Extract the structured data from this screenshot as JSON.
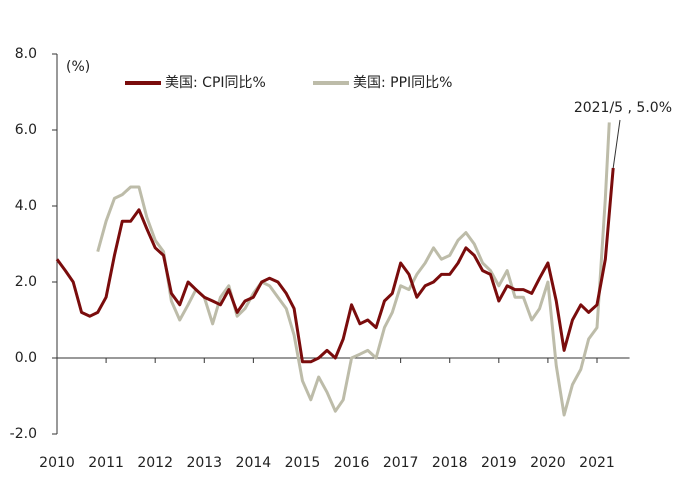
{
  "chart_data": {
    "type": "line",
    "y_label": "(%)",
    "annotation": "2021/5 , 5.0%",
    "legend": "top",
    "xlim": [
      2010,
      2021.5
    ],
    "xticks": [
      2010,
      2011,
      2012,
      2013,
      2014,
      2015,
      2016,
      2017,
      2018,
      2019,
      2020,
      2021
    ],
    "ylim": [
      -2,
      8
    ],
    "yticks": [
      {
        "value": -2,
        "label": "-2.0"
      },
      {
        "value": 0,
        "label": "0.0"
      },
      {
        "value": 2,
        "label": "2.0"
      },
      {
        "value": 4,
        "label": "4.0"
      },
      {
        "value": 6,
        "label": "6.0"
      },
      {
        "value": 8,
        "label": "8.0"
      }
    ],
    "series": [
      {
        "name": "美国: CPI同比%",
        "color": "#7a0c0c",
        "x": [
          2010.0,
          2010.17,
          2010.33,
          2010.5,
          2010.67,
          2010.83,
          2011.0,
          2011.17,
          2011.33,
          2011.5,
          2011.67,
          2011.83,
          2012.0,
          2012.17,
          2012.33,
          2012.5,
          2012.67,
          2012.83,
          2013.0,
          2013.17,
          2013.33,
          2013.5,
          2013.67,
          2013.83,
          2014.0,
          2014.17,
          2014.33,
          2014.5,
          2014.67,
          2014.83,
          2015.0,
          2015.17,
          2015.33,
          2015.5,
          2015.67,
          2015.83,
          2016.0,
          2016.17,
          2016.33,
          2016.5,
          2016.67,
          2016.83,
          2017.0,
          2017.17,
          2017.33,
          2017.5,
          2017.67,
          2017.83,
          2018.0,
          2018.17,
          2018.33,
          2018.5,
          2018.67,
          2018.83,
          2019.0,
          2019.17,
          2019.33,
          2019.5,
          2019.67,
          2019.83,
          2020.0,
          2020.17,
          2020.33,
          2020.5,
          2020.67,
          2020.83,
          2021.0,
          2021.17,
          2021.33
        ],
        "values": [
          2.6,
          2.3,
          2.0,
          1.2,
          1.1,
          1.2,
          1.6,
          2.7,
          3.6,
          3.6,
          3.9,
          3.4,
          2.9,
          2.7,
          1.7,
          1.4,
          2.0,
          1.8,
          1.6,
          1.5,
          1.4,
          1.8,
          1.2,
          1.5,
          1.6,
          2.0,
          2.1,
          2.0,
          1.7,
          1.3,
          -0.1,
          -0.1,
          0.0,
          0.2,
          0.0,
          0.5,
          1.4,
          0.9,
          1.0,
          0.8,
          1.5,
          1.7,
          2.5,
          2.2,
          1.6,
          1.9,
          2.0,
          2.2,
          2.2,
          2.5,
          2.9,
          2.7,
          2.3,
          2.2,
          1.5,
          1.9,
          1.8,
          1.8,
          1.7,
          2.1,
          2.5,
          1.5,
          0.2,
          1.0,
          1.4,
          1.2,
          1.4,
          2.6,
          5.0
        ]
      },
      {
        "name": "美国: PPI同比%",
        "color": "#bdbca9",
        "x": [
          2010.83,
          2011.0,
          2011.17,
          2011.33,
          2011.5,
          2011.67,
          2011.83,
          2012.0,
          2012.17,
          2012.33,
          2012.5,
          2012.67,
          2012.83,
          2013.0,
          2013.17,
          2013.33,
          2013.5,
          2013.67,
          2013.83,
          2014.0,
          2014.17,
          2014.33,
          2014.5,
          2014.67,
          2014.83,
          2015.0,
          2015.17,
          2015.33,
          2015.5,
          2015.67,
          2015.83,
          2016.0,
          2016.17,
          2016.33,
          2016.5,
          2016.67,
          2016.83,
          2017.0,
          2017.17,
          2017.33,
          2017.5,
          2017.67,
          2017.83,
          2018.0,
          2018.17,
          2018.33,
          2018.5,
          2018.67,
          2018.83,
          2019.0,
          2019.17,
          2019.33,
          2019.5,
          2019.67,
          2019.83,
          2020.0,
          2020.17,
          2020.33,
          2020.5,
          2020.67,
          2020.83,
          2021.0,
          2021.17,
          2021.25
        ],
        "values": [
          2.8,
          3.6,
          4.2,
          4.3,
          4.5,
          4.5,
          3.7,
          3.1,
          2.8,
          1.5,
          1.0,
          1.4,
          1.8,
          1.6,
          0.9,
          1.6,
          1.9,
          1.1,
          1.3,
          1.7,
          2.0,
          1.9,
          1.6,
          1.3,
          0.6,
          -0.6,
          -1.1,
          -0.5,
          -0.9,
          -1.4,
          -1.1,
          0.0,
          0.1,
          0.2,
          0.0,
          0.8,
          1.2,
          1.9,
          1.8,
          2.2,
          2.5,
          2.9,
          2.6,
          2.7,
          3.1,
          3.3,
          3.0,
          2.5,
          2.3,
          1.9,
          2.3,
          1.6,
          1.6,
          1.0,
          1.3,
          2.0,
          -0.2,
          -1.5,
          -0.7,
          -0.3,
          0.5,
          0.8,
          4.2,
          6.2
        ]
      }
    ]
  }
}
